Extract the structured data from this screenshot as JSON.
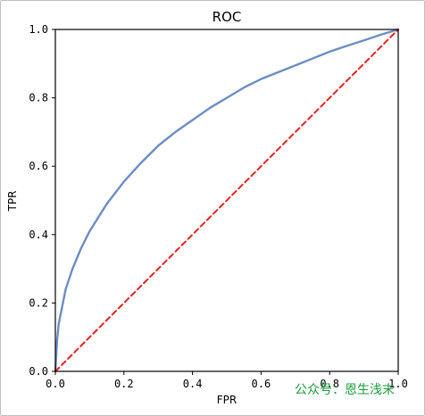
{
  "chart_data": {
    "type": "line",
    "title": "ROC",
    "xlabel": "FPR",
    "ylabel": "TPR",
    "xlim": [
      0.0,
      1.0
    ],
    "ylim": [
      0.0,
      1.0
    ],
    "x_ticks": [
      "0.0",
      "0.2",
      "0.4",
      "0.6",
      "0.8",
      "1.0"
    ],
    "y_ticks": [
      "0.0",
      "0.2",
      "0.4",
      "0.6",
      "0.8",
      "1.0"
    ],
    "grid": false,
    "series": [
      {
        "color": "#6a8ec3",
        "style": "solid",
        "x": [
          0.0,
          0.005,
          0.01,
          0.02,
          0.03,
          0.05,
          0.075,
          0.1,
          0.15,
          0.2,
          0.25,
          0.3,
          0.35,
          0.4,
          0.45,
          0.5,
          0.55,
          0.6,
          0.65,
          0.7,
          0.75,
          0.8,
          0.85,
          0.9,
          0.95,
          1.0
        ],
        "y": [
          0.0,
          0.09,
          0.14,
          0.19,
          0.24,
          0.3,
          0.36,
          0.41,
          0.49,
          0.555,
          0.61,
          0.66,
          0.7,
          0.735,
          0.77,
          0.8,
          0.83,
          0.855,
          0.875,
          0.895,
          0.915,
          0.935,
          0.952,
          0.968,
          0.985,
          1.0
        ]
      },
      {
        "color": "#e8201e",
        "style": "dashed",
        "x": [
          0.0,
          1.0
        ],
        "y": [
          0.0,
          1.0
        ]
      }
    ]
  },
  "watermark": {
    "text": "公众号：恩生浅末",
    "color": "#1a9b3a"
  }
}
